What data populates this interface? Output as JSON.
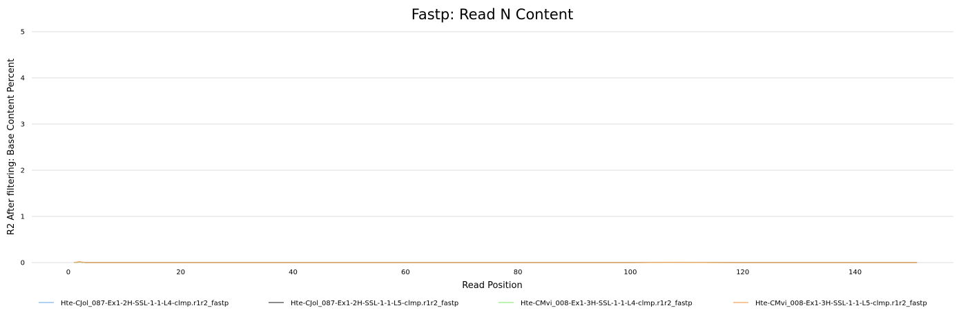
{
  "chart_data": {
    "type": "line",
    "title": "Fastp: Read N Content",
    "xlabel": "Read Position",
    "ylabel": "R2 After filtering: Base Content Percent",
    "xlim": [
      -6.5,
      157.5
    ],
    "ylim": [
      0,
      5
    ],
    "x_ticks": [
      0,
      20,
      40,
      60,
      80,
      100,
      120,
      140
    ],
    "y_ticks": [
      0,
      1,
      2,
      3,
      4,
      5
    ],
    "grid": true,
    "legend_position": "bottom",
    "series": [
      {
        "name": "Hte-CJol_087-Ex1-2H-SSL-1-1-L4-clmp.r1r2_fastp",
        "color": "#7cb5ec",
        "points": [
          [
            1,
            0.0
          ],
          [
            2,
            0.01
          ],
          [
            3,
            0.0
          ],
          [
            20,
            0.0
          ],
          [
            60,
            0.0
          ],
          [
            100,
            0.0
          ],
          [
            107,
            0.003
          ],
          [
            120,
            0.0
          ],
          [
            151,
            0.0
          ]
        ]
      },
      {
        "name": "Hte-CJol_087-Ex1-2H-SSL-1-1-L5-clmp.r1r2_fastp",
        "color": "#434348",
        "points": [
          [
            1,
            0.0
          ],
          [
            2,
            0.01
          ],
          [
            3,
            0.0
          ],
          [
            20,
            0.0
          ],
          [
            60,
            0.0
          ],
          [
            100,
            0.0
          ],
          [
            107,
            0.003
          ],
          [
            120,
            0.0
          ],
          [
            151,
            0.0
          ]
        ]
      },
      {
        "name": "Hte-CMvi_008-Ex1-3H-SSL-1-1-L4-clmp.r1r2_fastp",
        "color": "#90ed7d",
        "points": [
          [
            1,
            0.0
          ],
          [
            2,
            0.012
          ],
          [
            3,
            0.0
          ],
          [
            20,
            0.0
          ],
          [
            60,
            0.0
          ],
          [
            100,
            0.0
          ],
          [
            107,
            0.003
          ],
          [
            120,
            0.0
          ],
          [
            151,
            0.0
          ]
        ]
      },
      {
        "name": "Hte-CMvi_008-Ex1-3H-SSL-1-1-L5-clmp.r1r2_fastp",
        "color": "#f7a35c",
        "points": [
          [
            1,
            0.0
          ],
          [
            2,
            0.02
          ],
          [
            3,
            0.0
          ],
          [
            20,
            0.0
          ],
          [
            60,
            0.0
          ],
          [
            100,
            0.0
          ],
          [
            107,
            0.004
          ],
          [
            120,
            0.0
          ],
          [
            151,
            0.0
          ]
        ]
      }
    ]
  }
}
